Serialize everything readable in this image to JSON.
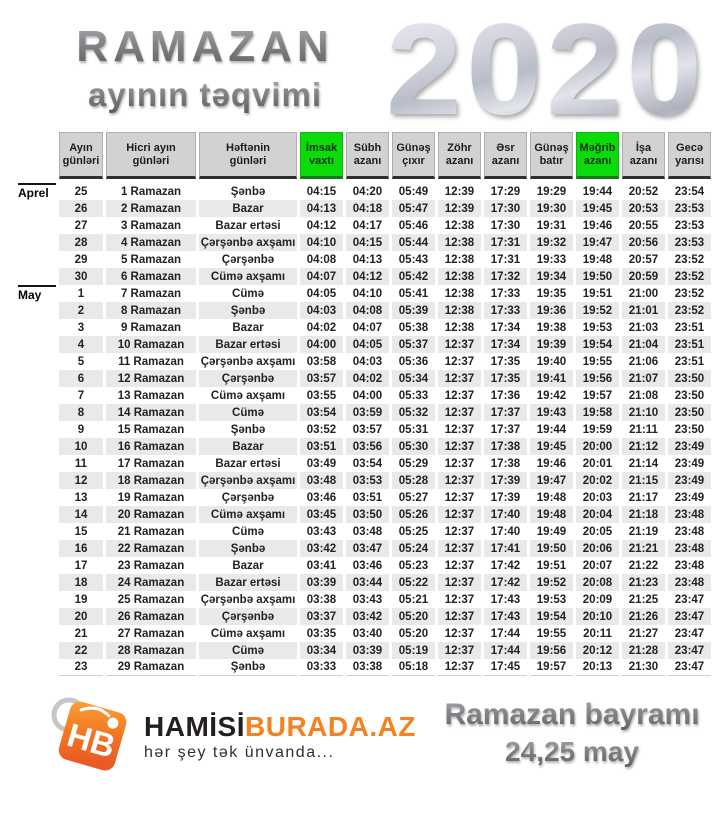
{
  "title": {
    "line1": "RAMAZAN",
    "line2": "ayının təqvimi",
    "year": "2020"
  },
  "table": {
    "headers": [
      "Ayın\ngünləri",
      "Hicri ayın\ngünləri",
      "Həftənin\ngünləri",
      "İmsak\nvaxtı",
      "Sübh\nazanı",
      "Günəş\nçıxır",
      "Zöhr\nazanı",
      "Əsr\nazanı",
      "Günəş\nbatır",
      "Məğrib\nazanı",
      "İşa\nazanı",
      "Gecə\nyarısı"
    ],
    "highlight_columns": [
      3,
      9
    ],
    "rows": [
      {
        "month": "Aprel",
        "day": "25",
        "hijri": "1 Ramazan",
        "weekday": "Şənbə",
        "times": [
          "04:15",
          "04:20",
          "05:49",
          "12:39",
          "17:29",
          "19:29",
          "19:44",
          "20:52",
          "23:54"
        ]
      },
      {
        "month": "",
        "day": "26",
        "hijri": "2 Ramazan",
        "weekday": "Bazar",
        "times": [
          "04:13",
          "04:18",
          "05:47",
          "12:39",
          "17:30",
          "19:30",
          "19:45",
          "20:53",
          "23:53"
        ]
      },
      {
        "month": "",
        "day": "27",
        "hijri": "3 Ramazan",
        "weekday": "Bazar ertəsi",
        "times": [
          "04:12",
          "04:17",
          "05:46",
          "12:38",
          "17:30",
          "19:31",
          "19:46",
          "20:55",
          "23:53"
        ]
      },
      {
        "month": "",
        "day": "28",
        "hijri": "4 Ramazan",
        "weekday": "Çərşənbə axşamı",
        "times": [
          "04:10",
          "04:15",
          "05:44",
          "12:38",
          "17:31",
          "19:32",
          "19:47",
          "20:56",
          "23:53"
        ]
      },
      {
        "month": "",
        "day": "29",
        "hijri": "5 Ramazan",
        "weekday": "Çərşənbə",
        "times": [
          "04:08",
          "04:13",
          "05:43",
          "12:38",
          "17:31",
          "19:33",
          "19:48",
          "20:57",
          "23:52"
        ]
      },
      {
        "month": "",
        "day": "30",
        "hijri": "6 Ramazan",
        "weekday": "Cümə axşamı",
        "times": [
          "04:07",
          "04:12",
          "05:42",
          "12:38",
          "17:32",
          "19:34",
          "19:50",
          "20:59",
          "23:52"
        ]
      },
      {
        "month": "May",
        "day": "1",
        "hijri": "7 Ramazan",
        "weekday": "Cümə",
        "times": [
          "04:05",
          "04:10",
          "05:41",
          "12:38",
          "17:33",
          "19:35",
          "19:51",
          "21:00",
          "23:52"
        ]
      },
      {
        "month": "",
        "day": "2",
        "hijri": "8 Ramazan",
        "weekday": "Şənbə",
        "times": [
          "04:03",
          "04:08",
          "05:39",
          "12:38",
          "17:33",
          "19:36",
          "19:52",
          "21:01",
          "23:52"
        ]
      },
      {
        "month": "",
        "day": "3",
        "hijri": "9 Ramazan",
        "weekday": "Bazar",
        "times": [
          "04:02",
          "04:07",
          "05:38",
          "12:38",
          "17:34",
          "19:38",
          "19:53",
          "21:03",
          "23:51"
        ]
      },
      {
        "month": "",
        "day": "4",
        "hijri": "10 Ramazan",
        "weekday": "Bazar ertəsi",
        "times": [
          "04:00",
          "04:05",
          "05:37",
          "12:37",
          "17:34",
          "19:39",
          "19:54",
          "21:04",
          "23:51"
        ]
      },
      {
        "month": "",
        "day": "5",
        "hijri": "11 Ramazan",
        "weekday": "Çərşənbə axşamı",
        "times": [
          "03:58",
          "04:03",
          "05:36",
          "12:37",
          "17:35",
          "19:40",
          "19:55",
          "21:06",
          "23:51"
        ]
      },
      {
        "month": "",
        "day": "6",
        "hijri": "12 Ramazan",
        "weekday": "Çərşənbə",
        "times": [
          "03:57",
          "04:02",
          "05:34",
          "12:37",
          "17:35",
          "19:41",
          "19:56",
          "21:07",
          "23:50"
        ]
      },
      {
        "month": "",
        "day": "7",
        "hijri": "13 Ramazan",
        "weekday": "Cümə axşamı",
        "times": [
          "03:55",
          "04:00",
          "05:33",
          "12:37",
          "17:36",
          "19:42",
          "19:57",
          "21:08",
          "23:50"
        ]
      },
      {
        "month": "",
        "day": "8",
        "hijri": "14 Ramazan",
        "weekday": "Cümə",
        "times": [
          "03:54",
          "03:59",
          "05:32",
          "12:37",
          "17:37",
          "19:43",
          "19:58",
          "21:10",
          "23:50"
        ]
      },
      {
        "month": "",
        "day": "9",
        "hijri": "15 Ramazan",
        "weekday": "Şənbə",
        "times": [
          "03:52",
          "03:57",
          "05:31",
          "12:37",
          "17:37",
          "19:44",
          "19:59",
          "21:11",
          "23:50"
        ]
      },
      {
        "month": "",
        "day": "10",
        "hijri": "16 Ramazan",
        "weekday": "Bazar",
        "times": [
          "03:51",
          "03:56",
          "05:30",
          "12:37",
          "17:38",
          "19:45",
          "20:00",
          "21:12",
          "23:49"
        ]
      },
      {
        "month": "",
        "day": "11",
        "hijri": "17 Ramazan",
        "weekday": "Bazar ertəsi",
        "times": [
          "03:49",
          "03:54",
          "05:29",
          "12:37",
          "17:38",
          "19:46",
          "20:01",
          "21:14",
          "23:49"
        ]
      },
      {
        "month": "",
        "day": "12",
        "hijri": "18 Ramazan",
        "weekday": "Çərşənbə axşamı",
        "times": [
          "03:48",
          "03:53",
          "05:28",
          "12:37",
          "17:39",
          "19:47",
          "20:02",
          "21:15",
          "23:49"
        ]
      },
      {
        "month": "",
        "day": "13",
        "hijri": "19 Ramazan",
        "weekday": "Çərşənbə",
        "times": [
          "03:46",
          "03:51",
          "05:27",
          "12:37",
          "17:39",
          "19:48",
          "20:03",
          "21:17",
          "23:49"
        ]
      },
      {
        "month": "",
        "day": "14",
        "hijri": "20 Ramazan",
        "weekday": "Cümə axşamı",
        "times": [
          "03:45",
          "03:50",
          "05:26",
          "12:37",
          "17:40",
          "19:48",
          "20:04",
          "21:18",
          "23:48"
        ]
      },
      {
        "month": "",
        "day": "15",
        "hijri": "21 Ramazan",
        "weekday": "Cümə",
        "times": [
          "03:43",
          "03:48",
          "05:25",
          "12:37",
          "17:40",
          "19:49",
          "20:05",
          "21:19",
          "23:48"
        ]
      },
      {
        "month": "",
        "day": "16",
        "hijri": "22 Ramazan",
        "weekday": "Şənbə",
        "times": [
          "03:42",
          "03:47",
          "05:24",
          "12:37",
          "17:41",
          "19:50",
          "20:06",
          "21:21",
          "23:48"
        ]
      },
      {
        "month": "",
        "day": "17",
        "hijri": "23 Ramazan",
        "weekday": "Bazar",
        "times": [
          "03:41",
          "03:46",
          "05:23",
          "12:37",
          "17:42",
          "19:51",
          "20:07",
          "21:22",
          "23:48"
        ]
      },
      {
        "month": "",
        "day": "18",
        "hijri": "24 Ramazan",
        "weekday": "Bazar ertəsi",
        "times": [
          "03:39",
          "03:44",
          "05:22",
          "12:37",
          "17:42",
          "19:52",
          "20:08",
          "21:23",
          "23:48"
        ]
      },
      {
        "month": "",
        "day": "19",
        "hijri": "25 Ramazan",
        "weekday": "Çərşənbə axşamı",
        "times": [
          "03:38",
          "03:43",
          "05:21",
          "12:37",
          "17:43",
          "19:53",
          "20:09",
          "21:25",
          "23:47"
        ]
      },
      {
        "month": "",
        "day": "20",
        "hijri": "26 Ramazan",
        "weekday": "Çərşənbə",
        "times": [
          "03:37",
          "03:42",
          "05:20",
          "12:37",
          "17:43",
          "19:54",
          "20:10",
          "21:26",
          "23:47"
        ]
      },
      {
        "month": "",
        "day": "21",
        "hijri": "27 Ramazan",
        "weekday": "Cümə axşamı",
        "times": [
          "03:35",
          "03:40",
          "05:20",
          "12:37",
          "17:44",
          "19:55",
          "20:11",
          "21:27",
          "23:47"
        ]
      },
      {
        "month": "",
        "day": "22",
        "hijri": "28 Ramazan",
        "weekday": "Cümə",
        "times": [
          "03:34",
          "03:39",
          "05:19",
          "12:37",
          "17:44",
          "19:56",
          "20:12",
          "21:28",
          "23:47"
        ]
      },
      {
        "month": "",
        "day": "23",
        "hijri": "29 Ramazan",
        "weekday": "Şənbə",
        "times": [
          "03:33",
          "03:38",
          "05:18",
          "12:37",
          "17:45",
          "19:57",
          "20:13",
          "21:30",
          "23:47"
        ]
      }
    ]
  },
  "footer": {
    "logo": {
      "monogram": "HB",
      "name_black": "HAMİSİ",
      "name_orange": "BURADA.AZ",
      "tagline": "hər şey tək ünvanda..."
    },
    "note_line1": "Ramazan bayramı",
    "note_line2": "24,25 may"
  },
  "colors": {
    "highlight_green": "#0bdb0b",
    "header_gray": "#d2d2d2",
    "stripe_gray": "#e9e9e9",
    "logo_orange": "#f58220"
  }
}
